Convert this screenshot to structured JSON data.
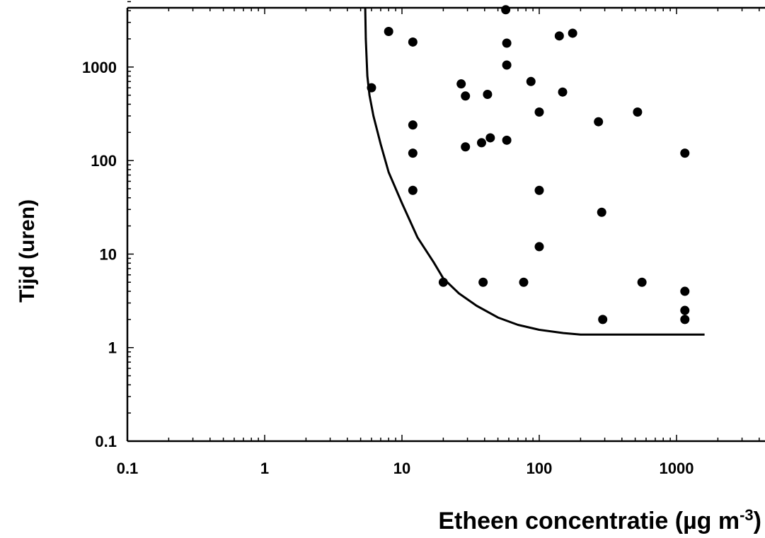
{
  "chart_data": {
    "type": "scatter",
    "title": "",
    "xlabel": "Etheen concentratie (µg m",
    "xlabel_sup": "-3",
    "xlabel_close": ")",
    "ylabel": "Tijd (uren)",
    "xscale": "log",
    "yscale": "log",
    "xlim": [
      0.1,
      5000
    ],
    "ylim": [
      0.1,
      5000
    ],
    "grid": false,
    "legend": "none",
    "x_tick_labels": [
      "0.1",
      "1",
      "10",
      "100",
      "1000"
    ],
    "y_tick_labels": [
      "0.1",
      "1",
      "10",
      "100",
      "1000"
    ],
    "x_ticks": [
      0.1,
      1,
      10,
      100,
      1000
    ],
    "y_ticks": [
      0.1,
      1,
      10,
      100,
      1000
    ],
    "series": [
      {
        "type": "scatter",
        "color": "#000000",
        "points": [
          [
            6,
            600
          ],
          [
            8,
            2400
          ],
          [
            12,
            1850
          ],
          [
            12,
            240
          ],
          [
            12,
            120
          ],
          [
            12,
            48
          ],
          [
            20,
            5
          ],
          [
            27,
            660
          ],
          [
            29,
            490
          ],
          [
            29,
            140
          ],
          [
            38,
            155
          ],
          [
            39,
            5
          ],
          [
            42,
            510
          ],
          [
            44,
            175
          ],
          [
            57,
            4100
          ],
          [
            58,
            1800
          ],
          [
            58,
            1050
          ],
          [
            58,
            165
          ],
          [
            77,
            5
          ],
          [
            87,
            700
          ],
          [
            100,
            330
          ],
          [
            100,
            48
          ],
          [
            100,
            12
          ],
          [
            140,
            2150
          ],
          [
            148,
            540
          ],
          [
            175,
            2300
          ],
          [
            270,
            260
          ],
          [
            285,
            28
          ],
          [
            290,
            2
          ],
          [
            520,
            330
          ],
          [
            560,
            5
          ],
          [
            1150,
            120
          ],
          [
            1150,
            4
          ],
          [
            1150,
            2.5
          ],
          [
            1150,
            2
          ]
        ]
      },
      {
        "type": "line",
        "color": "#000000",
        "points": [
          [
            5.4,
            5000
          ],
          [
            5.45,
            2000
          ],
          [
            5.6,
            800
          ],
          [
            5.8,
            500
          ],
          [
            6.2,
            300
          ],
          [
            7,
            150
          ],
          [
            8,
            75
          ],
          [
            10,
            35
          ],
          [
            13,
            15
          ],
          [
            17,
            8.2
          ],
          [
            20,
            5.5
          ],
          [
            26,
            3.8
          ],
          [
            35,
            2.8
          ],
          [
            50,
            2.1
          ],
          [
            70,
            1.75
          ],
          [
            100,
            1.55
          ],
          [
            150,
            1.43
          ],
          [
            200,
            1.38
          ],
          [
            400,
            1.38
          ],
          [
            1600,
            1.38
          ]
        ]
      }
    ]
  }
}
